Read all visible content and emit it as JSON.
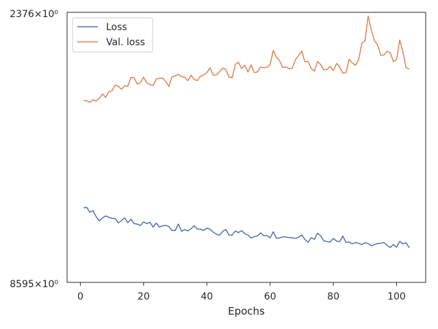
{
  "chart_data": {
    "type": "line",
    "xlabel": "Epochs",
    "ylabel": "",
    "xlim": [
      -4.2,
      109.2
    ],
    "xticks": [
      0,
      20,
      40,
      60,
      80,
      100
    ],
    "ylog": true,
    "ylim": [
      0.8595,
      1.2376
    ],
    "ytick_labels": [
      "2376×10⁰",
      "8595×10⁰"
    ],
    "legend_position": "upper-left",
    "grid": false,
    "series": [
      {
        "name": "Loss",
        "color": "#4c72b0",
        "x": [
          1,
          2,
          3,
          4,
          5,
          6,
          7,
          8,
          9,
          10,
          11,
          12,
          13,
          14,
          15,
          16,
          17,
          18,
          19,
          20,
          21,
          22,
          23,
          24,
          25,
          26,
          27,
          28,
          29,
          30,
          31,
          32,
          33,
          34,
          35,
          36,
          37,
          38,
          39,
          40,
          41,
          42,
          43,
          44,
          45,
          46,
          47,
          48,
          49,
          50,
          51,
          52,
          53,
          54,
          55,
          56,
          57,
          58,
          59,
          60,
          61,
          62,
          63,
          64,
          65,
          66,
          67,
          68,
          69,
          70,
          71,
          72,
          73,
          74,
          75,
          76,
          77,
          78,
          79,
          80,
          81,
          82,
          83,
          84,
          85,
          86,
          87,
          88,
          89,
          90,
          91,
          92,
          93,
          94,
          95,
          96,
          97,
          98,
          99,
          100,
          101,
          102,
          103,
          104
        ],
        "y": [
          0.9505,
          0.9512,
          0.9448,
          0.9468,
          0.9392,
          0.934,
          0.9376,
          0.9402,
          0.9383,
          0.9372,
          0.937,
          0.9314,
          0.9342,
          0.9377,
          0.9317,
          0.936,
          0.9305,
          0.9298,
          0.9282,
          0.9325,
          0.9305,
          0.9321,
          0.9262,
          0.9311,
          0.9262,
          0.9276,
          0.9283,
          0.9268,
          0.9218,
          0.9219,
          0.93,
          0.9209,
          0.923,
          0.9213,
          0.9242,
          0.9278,
          0.9237,
          0.9235,
          0.922,
          0.9248,
          0.9234,
          0.9199,
          0.9174,
          0.916,
          0.9206,
          0.9231,
          0.9163,
          0.9161,
          0.9213,
          0.9193,
          0.9218,
          0.9179,
          0.9163,
          0.9126,
          0.9143,
          0.9151,
          0.9189,
          0.9153,
          0.9158,
          0.9127,
          0.9203,
          0.9124,
          0.9127,
          0.914,
          0.9137,
          0.9131,
          0.9129,
          0.9121,
          0.9135,
          0.9164,
          0.9108,
          0.9073,
          0.9131,
          0.911,
          0.9185,
          0.9153,
          0.909,
          0.9082,
          0.9077,
          0.912,
          0.9089,
          0.9079,
          0.915,
          0.9072,
          0.9076,
          0.9054,
          0.9071,
          0.9061,
          0.9045,
          0.9068,
          0.906,
          0.903,
          0.9045,
          0.9058,
          0.9061,
          0.907,
          0.9034,
          0.901,
          0.9046,
          0.9014,
          0.9084,
          0.9053,
          0.9068,
          0.9005
        ]
      },
      {
        "name": "Val. loss",
        "color": "#dd8452",
        "x": [
          1,
          2,
          3,
          4,
          5,
          6,
          7,
          8,
          9,
          10,
          11,
          12,
          13,
          14,
          15,
          16,
          17,
          18,
          19,
          20,
          21,
          22,
          23,
          24,
          25,
          26,
          27,
          28,
          29,
          30,
          31,
          32,
          33,
          34,
          35,
          36,
          37,
          38,
          39,
          40,
          41,
          42,
          43,
          44,
          45,
          46,
          47,
          48,
          49,
          50,
          51,
          52,
          53,
          54,
          55,
          56,
          57,
          58,
          59,
          60,
          61,
          62,
          63,
          64,
          65,
          66,
          67,
          68,
          69,
          70,
          71,
          72,
          73,
          74,
          75,
          76,
          77,
          78,
          79,
          80,
          81,
          82,
          83,
          84,
          85,
          86,
          87,
          88,
          89,
          90,
          91,
          92,
          93,
          94,
          95,
          96,
          97,
          98,
          99,
          100,
          101,
          102,
          103,
          104
        ],
        "y": [
          1.0989,
          1.0983,
          1.096,
          1.0999,
          1.0978,
          1.102,
          1.1086,
          1.1034,
          1.1116,
          1.113,
          1.1219,
          1.1198,
          1.1157,
          1.1207,
          1.1199,
          1.1336,
          1.1328,
          1.1234,
          1.1254,
          1.1339,
          1.1252,
          1.1228,
          1.1212,
          1.1312,
          1.1321,
          1.1325,
          1.1273,
          1.1196,
          1.1343,
          1.1359,
          1.1383,
          1.1345,
          1.1338,
          1.1285,
          1.1369,
          1.1303,
          1.1288,
          1.1354,
          1.1372,
          1.1409,
          1.1483,
          1.1371,
          1.1373,
          1.1419,
          1.1479,
          1.1458,
          1.1343,
          1.1328,
          1.1534,
          1.1569,
          1.147,
          1.152,
          1.1419,
          1.1528,
          1.1409,
          1.142,
          1.1496,
          1.1484,
          1.1491,
          1.1531,
          1.1754,
          1.1652,
          1.1591,
          1.149,
          1.1497,
          1.1469,
          1.1477,
          1.1608,
          1.1676,
          1.1746,
          1.1576,
          1.1585,
          1.1471,
          1.1434,
          1.158,
          1.1534,
          1.145,
          1.1457,
          1.1506,
          1.1441,
          1.155,
          1.1499,
          1.1398,
          1.141,
          1.1615,
          1.1558,
          1.1521,
          1.1608,
          1.1872,
          1.1906,
          1.2314,
          1.2089,
          1.1911,
          1.1847,
          1.1678,
          1.1685,
          1.174,
          1.1718,
          1.1578,
          1.1617,
          1.1922,
          1.1732,
          1.1484,
          1.1465
        ]
      }
    ]
  }
}
